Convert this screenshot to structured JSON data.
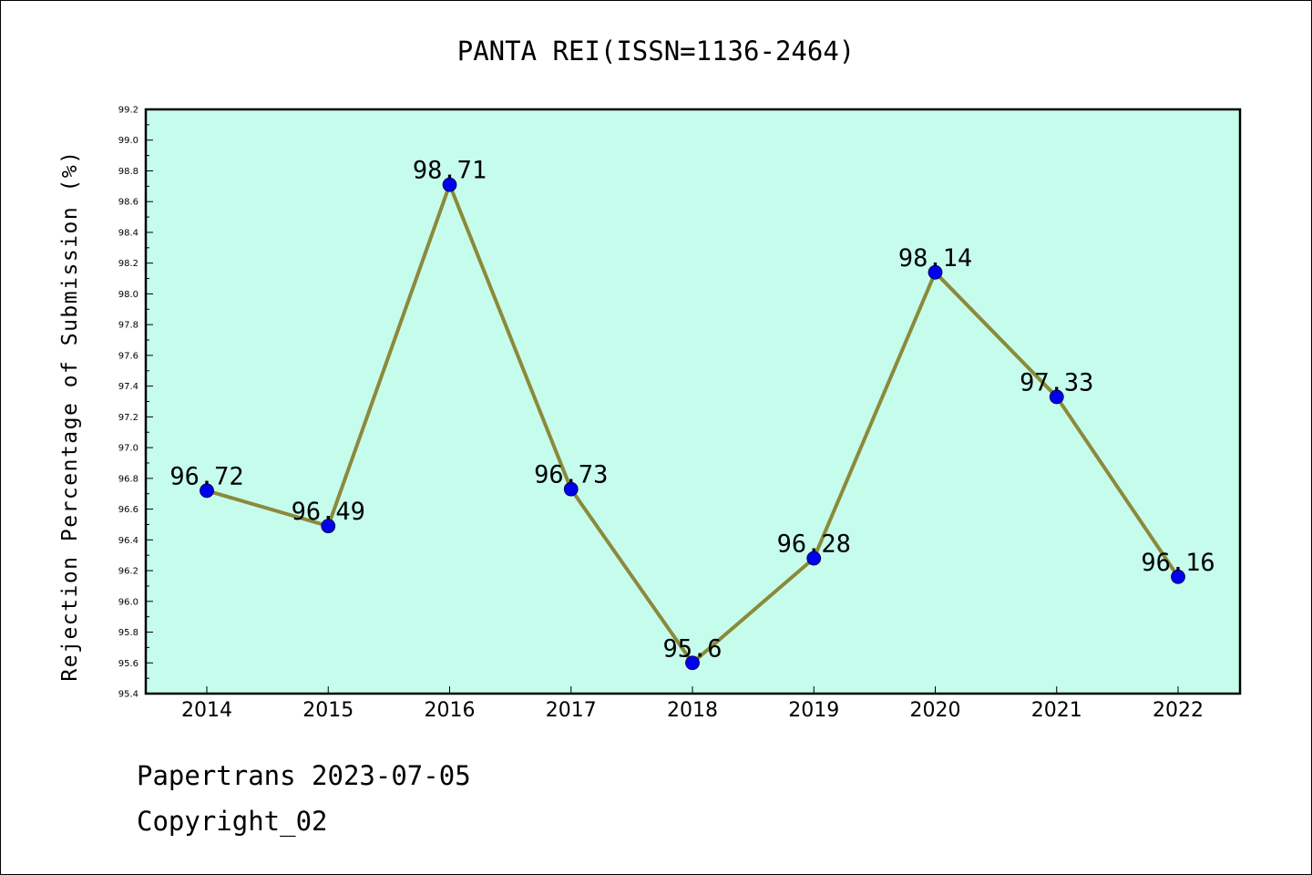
{
  "chart_data": {
    "type": "line",
    "title": "PANTA REI(ISSN=1136-2464)",
    "xlabel": "",
    "ylabel": "Rejection Percentage of Submission (%)",
    "categories": [
      "2014",
      "2015",
      "2016",
      "2017",
      "2018",
      "2019",
      "2020",
      "2021",
      "2022"
    ],
    "series": [
      {
        "values": [
          96.72,
          96.49,
          98.71,
          96.73,
          95.6,
          96.28,
          98.14,
          97.33,
          96.16
        ],
        "labels": [
          "96.72",
          "96.49",
          "98.71",
          "96.73",
          "95.6",
          "96.28",
          "98.14",
          "97.33",
          "96.16"
        ]
      }
    ],
    "ylim": [
      95.4,
      99.2
    ],
    "yticks": [
      "95.4",
      "95.6",
      "95.8",
      "96.0",
      "96.2",
      "96.4",
      "96.6",
      "96.8",
      "97.0",
      "97.2",
      "97.4",
      "97.6",
      "97.8",
      "98.0",
      "98.2",
      "98.4",
      "98.6",
      "98.8",
      "99.0",
      "99.2"
    ],
    "grid": false,
    "legend": "none",
    "colors": {
      "plot_background": "#c6fcec",
      "line": "#8b8a3a",
      "marker": "#0000ee"
    }
  },
  "footer": {
    "line1": "Papertrans 2023-07-05",
    "line2": "Copyright_02"
  }
}
